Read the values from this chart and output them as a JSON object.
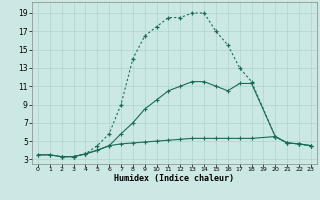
{
  "xlabel": "Humidex (Indice chaleur)",
  "background_color": "#cce8e4",
  "grid_color": "#afd4cf",
  "line_color": "#1a6b5a",
  "xlim": [
    -0.5,
    23.5
  ],
  "ylim": [
    2.5,
    20.2
  ],
  "xticks": [
    0,
    1,
    2,
    3,
    4,
    5,
    6,
    7,
    8,
    9,
    10,
    11,
    12,
    13,
    14,
    15,
    16,
    17,
    18,
    19,
    20,
    21,
    22,
    23
  ],
  "yticks": [
    3,
    5,
    7,
    9,
    11,
    13,
    15,
    17,
    19
  ],
  "line1_x": [
    0,
    1,
    2,
    3,
    4,
    5,
    6,
    7,
    8,
    9,
    10,
    11,
    12,
    13,
    14,
    15,
    16,
    17,
    18,
    20,
    21,
    22,
    23
  ],
  "line1_y": [
    3.5,
    3.5,
    3.3,
    3.3,
    3.6,
    4.0,
    4.5,
    4.7,
    4.8,
    4.9,
    5.0,
    5.1,
    5.2,
    5.3,
    5.3,
    5.3,
    5.3,
    5.3,
    5.3,
    5.5,
    4.8,
    4.7,
    4.5
  ],
  "line2_x": [
    0,
    1,
    2,
    3,
    4,
    5,
    6,
    7,
    8,
    9,
    10,
    11,
    12,
    13,
    14,
    15,
    16,
    17,
    18,
    20,
    21,
    22,
    23
  ],
  "line2_y": [
    3.5,
    3.5,
    3.3,
    3.3,
    3.6,
    4.0,
    4.5,
    5.8,
    7.0,
    8.5,
    9.5,
    10.5,
    11.0,
    11.5,
    11.5,
    11.0,
    10.5,
    11.3,
    11.3,
    5.5,
    4.8,
    4.7,
    4.5
  ],
  "line3_x": [
    2,
    3,
    4,
    5,
    6,
    7,
    8,
    9,
    10,
    11,
    12,
    13,
    14,
    15,
    16,
    17,
    18,
    20,
    21,
    22,
    23
  ],
  "line3_y": [
    3.3,
    3.3,
    3.6,
    4.5,
    5.8,
    9.0,
    14.0,
    16.5,
    17.5,
    18.5,
    18.5,
    19.0,
    19.0,
    17.0,
    15.5,
    13.0,
    11.5,
    5.5,
    4.8,
    4.7,
    4.5
  ]
}
